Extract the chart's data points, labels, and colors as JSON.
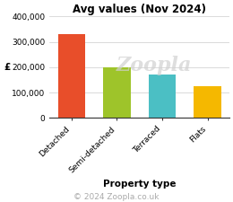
{
  "title": "Avg values (Nov 2024)",
  "categories": [
    "Detached",
    "Semi-detached",
    "Terraced",
    "Flats"
  ],
  "values": [
    330000,
    200000,
    170000,
    125000
  ],
  "bar_colors": [
    "#e84e2a",
    "#9ec42a",
    "#4bbfc4",
    "#f5b800"
  ],
  "ylabel": "£",
  "xlabel": "Property type",
  "ylim": [
    0,
    400000
  ],
  "yticks": [
    0,
    100000,
    200000,
    300000,
    400000
  ],
  "ytick_labels": [
    "0",
    "100,000",
    "200,000",
    "300,000",
    "400,000"
  ],
  "watermark": "Zoopla",
  "copyright": "© 2024 Zoopla.co.uk",
  "title_fontsize": 8.5,
  "label_fontsize": 7.5,
  "tick_fontsize": 6.5,
  "copyright_fontsize": 6.5,
  "background_color": "#ffffff",
  "grid_color": "#cccccc"
}
